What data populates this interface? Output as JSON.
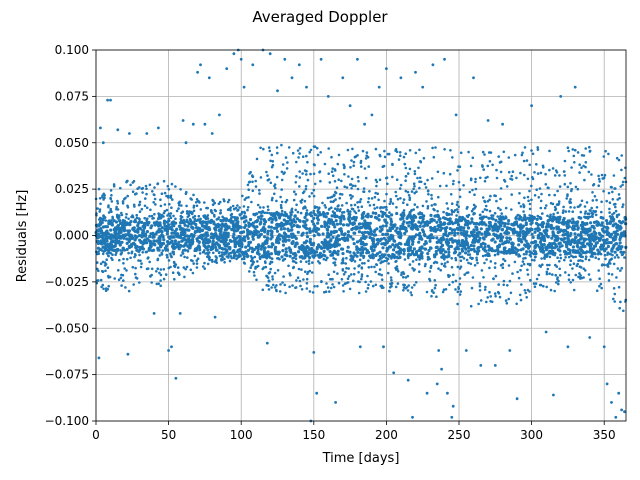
{
  "chart_data": {
    "type": "scatter",
    "title": "Averaged Doppler",
    "xlabel": "Time [days]",
    "ylabel": "Residuals [Hz]",
    "xlim": [
      0,
      365
    ],
    "ylim": [
      -0.1,
      0.1
    ],
    "xticks": [
      0,
      50,
      100,
      150,
      200,
      250,
      300,
      350
    ],
    "xtick_labels": [
      "0",
      "50",
      "100",
      "150",
      "200",
      "250",
      "300",
      "350"
    ],
    "yticks": [
      -0.1,
      -0.075,
      -0.05,
      -0.025,
      0.0,
      0.025,
      0.05,
      0.075,
      0.1
    ],
    "ytick_labels": [
      "−0.100",
      "−0.075",
      "−0.050",
      "−0.025",
      "0.000",
      "0.025",
      "0.050",
      "0.075",
      "0.100"
    ],
    "grid": true,
    "marker_color": "#1f77b4",
    "series": [
      {
        "envelope": [
          {
            "x": 0,
            "core": 0.008,
            "upper": 0.028,
            "lower": -0.03
          },
          {
            "x": 25,
            "core": 0.008,
            "upper": 0.03,
            "lower": -0.03
          },
          {
            "x": 50,
            "core": 0.008,
            "upper": 0.03,
            "lower": -0.028
          },
          {
            "x": 75,
            "core": 0.008,
            "upper": 0.02,
            "lower": -0.018
          },
          {
            "x": 100,
            "core": 0.01,
            "upper": 0.02,
            "lower": -0.012
          },
          {
            "x": 112,
            "core": 0.012,
            "upper": 0.05,
            "lower": -0.03
          },
          {
            "x": 150,
            "core": 0.012,
            "upper": 0.048,
            "lower": -0.033
          },
          {
            "x": 200,
            "core": 0.012,
            "upper": 0.047,
            "lower": -0.03
          },
          {
            "x": 240,
            "core": 0.012,
            "upper": 0.048,
            "lower": -0.035
          },
          {
            "x": 250,
            "core": 0.01,
            "upper": 0.045,
            "lower": -0.04
          },
          {
            "x": 285,
            "core": 0.01,
            "upper": 0.047,
            "lower": -0.045
          },
          {
            "x": 300,
            "core": 0.01,
            "upper": 0.048,
            "lower": -0.03
          },
          {
            "x": 350,
            "core": 0.01,
            "upper": 0.048,
            "lower": -0.03
          },
          {
            "x": 365,
            "core": 0.01,
            "upper": 0.045,
            "lower": -0.045
          }
        ],
        "points": [
          [
            2,
            -0.066
          ],
          [
            3,
            0.058
          ],
          [
            5,
            0.05
          ],
          [
            8,
            0.073
          ],
          [
            10,
            0.073
          ],
          [
            15,
            0.057
          ],
          [
            22,
            -0.064
          ],
          [
            23,
            0.055
          ],
          [
            35,
            0.055
          ],
          [
            40,
            -0.042
          ],
          [
            43,
            0.058
          ],
          [
            50,
            -0.062
          ],
          [
            52,
            -0.06
          ],
          [
            55,
            -0.077
          ],
          [
            58,
            -0.042
          ],
          [
            60,
            0.062
          ],
          [
            62,
            0.05
          ],
          [
            67,
            0.06
          ],
          [
            70,
            0.088
          ],
          [
            72,
            0.092
          ],
          [
            75,
            0.06
          ],
          [
            78,
            0.085
          ],
          [
            80,
            0.055
          ],
          [
            82,
            -0.044
          ],
          [
            85,
            0.065
          ],
          [
            90,
            0.09
          ],
          [
            95,
            0.098
          ],
          [
            98,
            0.1
          ],
          [
            100,
            0.095
          ],
          [
            102,
            0.08
          ],
          [
            108,
            0.092
          ],
          [
            115,
            0.1
          ],
          [
            118,
            -0.058
          ],
          [
            120,
            0.098
          ],
          [
            125,
            0.078
          ],
          [
            130,
            0.095
          ],
          [
            135,
            0.085
          ],
          [
            140,
            0.092
          ],
          [
            145,
            0.08
          ],
          [
            148,
            -0.1
          ],
          [
            150,
            -0.063
          ],
          [
            152,
            -0.085
          ],
          [
            155,
            0.095
          ],
          [
            160,
            0.075
          ],
          [
            165,
            -0.09
          ],
          [
            170,
            0.085
          ],
          [
            175,
            0.07
          ],
          [
            180,
            0.095
          ],
          [
            182,
            -0.06
          ],
          [
            185,
            0.06
          ],
          [
            190,
            0.065
          ],
          [
            195,
            0.08
          ],
          [
            198,
            -0.06
          ],
          [
            200,
            0.09
          ],
          [
            205,
            -0.074
          ],
          [
            210,
            0.085
          ],
          [
            215,
            -0.078
          ],
          [
            218,
            -0.098
          ],
          [
            220,
            0.088
          ],
          [
            225,
            0.08
          ],
          [
            228,
            -0.085
          ],
          [
            232,
            0.092
          ],
          [
            235,
            -0.08
          ],
          [
            236,
            -0.062
          ],
          [
            238,
            -0.072
          ],
          [
            240,
            0.095
          ],
          [
            242,
            -0.085
          ],
          [
            245,
            -0.098
          ],
          [
            246,
            -0.092
          ],
          [
            248,
            0.065
          ],
          [
            255,
            -0.062
          ],
          [
            260,
            0.085
          ],
          [
            265,
            -0.07
          ],
          [
            270,
            0.062
          ],
          [
            275,
            -0.07
          ],
          [
            280,
            0.06
          ],
          [
            285,
            -0.062
          ],
          [
            290,
            -0.088
          ],
          [
            300,
            0.07
          ],
          [
            310,
            -0.052
          ],
          [
            315,
            -0.086
          ],
          [
            320,
            0.075
          ],
          [
            325,
            -0.06
          ],
          [
            330,
            0.08
          ],
          [
            340,
            -0.055
          ],
          [
            350,
            -0.06
          ],
          [
            352,
            -0.08
          ],
          [
            355,
            -0.09
          ],
          [
            358,
            -0.098
          ],
          [
            360,
            -0.085
          ],
          [
            362,
            -0.094
          ],
          [
            364,
            -0.095
          ]
        ]
      }
    ]
  }
}
